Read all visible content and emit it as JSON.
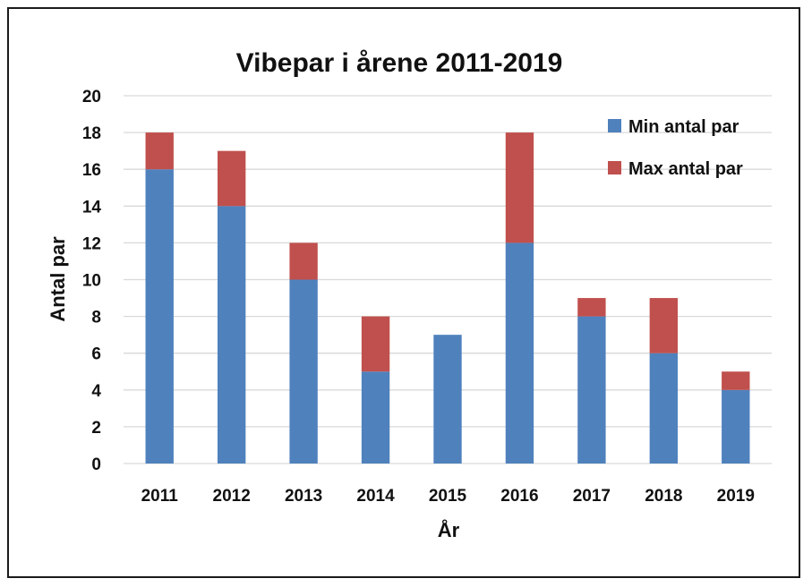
{
  "chart_data": {
    "type": "bar",
    "stacked": true,
    "title": "Vibepar i årene 2011-2019",
    "xlabel": "År",
    "ylabel": "Antal par",
    "categories": [
      "2011",
      "2012",
      "2013",
      "2014",
      "2015",
      "2016",
      "2017",
      "2018",
      "2019"
    ],
    "series": [
      {
        "name": "Min antal par",
        "color": "#4F81BD",
        "values": [
          16,
          14,
          10,
          5,
          7,
          12,
          8,
          6,
          4
        ]
      },
      {
        "name": "Max antal par",
        "color": "#C0504D",
        "values": [
          2,
          3,
          2,
          3,
          0,
          6,
          1,
          3,
          1
        ]
      }
    ],
    "totals": [
      18,
      17,
      12,
      8,
      7,
      18,
      9,
      9,
      5
    ],
    "ylim": [
      0,
      20
    ],
    "yticks": [
      0,
      2,
      4,
      6,
      8,
      10,
      12,
      14,
      16,
      18,
      20
    ],
    "grid": true,
    "legend_position": "top-right"
  }
}
